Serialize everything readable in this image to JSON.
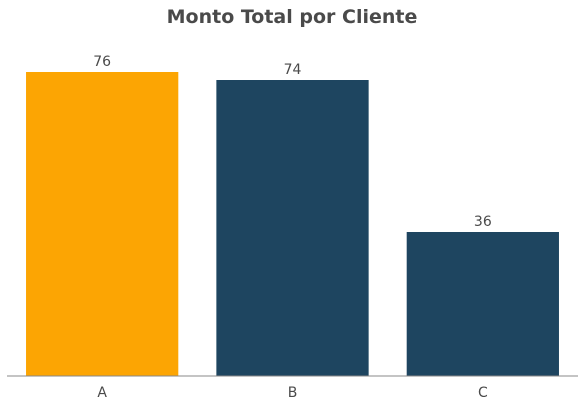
{
  "chart_data": {
    "type": "bar",
    "title": "Monto Total por Cliente",
    "xlabel": "",
    "ylabel": "",
    "categories": [
      "A",
      "B",
      "C"
    ],
    "values": [
      76,
      74,
      36
    ],
    "ylim": [
      0,
      80
    ],
    "grid": false,
    "legend": "none",
    "show_y_axis": false,
    "data_labels": [
      "76",
      "74",
      "36"
    ],
    "colors": [
      "#FCA503",
      "#1E4560",
      "#1E4560"
    ],
    "highlight_color": "#FCA503",
    "base_color": "#1E4560",
    "axis_color": "#888888"
  }
}
